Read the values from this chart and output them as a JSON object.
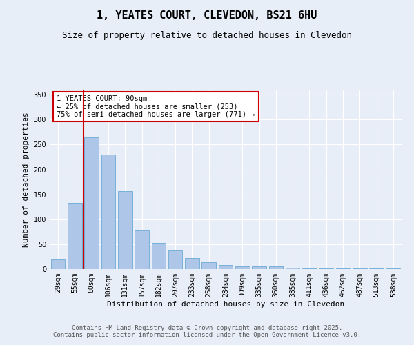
{
  "title": "1, YEATES COURT, CLEVEDON, BS21 6HU",
  "subtitle": "Size of property relative to detached houses in Clevedon",
  "xlabel": "Distribution of detached houses by size in Clevedon",
  "ylabel": "Number of detached properties",
  "categories": [
    "29sqm",
    "55sqm",
    "80sqm",
    "106sqm",
    "131sqm",
    "157sqm",
    "182sqm",
    "207sqm",
    "233sqm",
    "258sqm",
    "284sqm",
    "309sqm",
    "335sqm",
    "360sqm",
    "385sqm",
    "411sqm",
    "436sqm",
    "462sqm",
    "487sqm",
    "513sqm",
    "538sqm"
  ],
  "values": [
    20,
    133,
    265,
    230,
    157,
    77,
    53,
    37,
    22,
    14,
    9,
    6,
    5,
    5,
    3,
    2,
    1,
    1,
    1,
    1,
    2
  ],
  "bar_color": "#aec6e8",
  "bar_edge_color": "#6aaad4",
  "red_line_x": 1.5,
  "red_line_color": "#cc0000",
  "annotation_text": "1 YEATES COURT: 90sqm\n← 25% of detached houses are smaller (253)\n75% of semi-detached houses are larger (771) →",
  "annotation_box_color": "#ffffff",
  "annotation_box_edge_color": "#cc0000",
  "ylim": [
    0,
    360
  ],
  "yticks": [
    0,
    50,
    100,
    150,
    200,
    250,
    300,
    350
  ],
  "background_color": "#e8eef8",
  "footer_text": "Contains HM Land Registry data © Crown copyright and database right 2025.\nContains public sector information licensed under the Open Government Licence v3.0.",
  "title_fontsize": 11,
  "subtitle_fontsize": 9,
  "axis_label_fontsize": 8,
  "tick_fontsize": 7,
  "annotation_fontsize": 7.5,
  "footer_fontsize": 6.5
}
